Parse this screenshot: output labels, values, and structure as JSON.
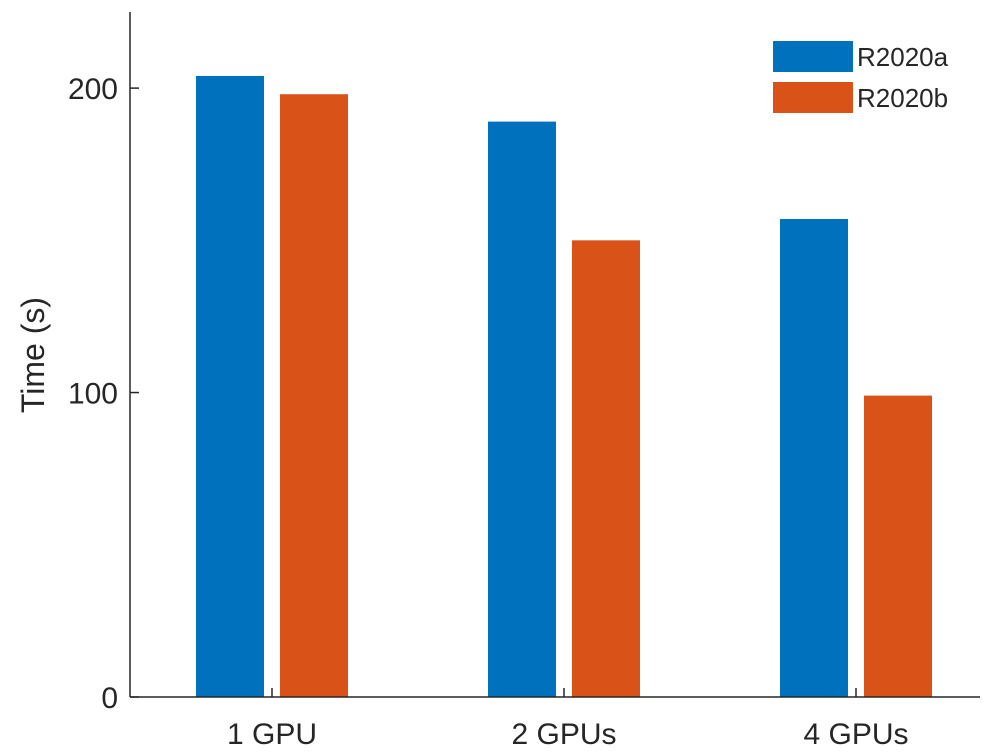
{
  "chart_data": {
    "type": "bar",
    "title": "",
    "xlabel": "",
    "ylabel": "Time (s)",
    "categories": [
      "1 GPU",
      "2 GPUs",
      "4 GPUs"
    ],
    "series": [
      {
        "name": "R2020a",
        "color": "#0072BD",
        "values": [
          204,
          189,
          157
        ]
      },
      {
        "name": "R2020b",
        "color": "#D95319",
        "values": [
          198,
          150,
          99
        ]
      }
    ],
    "ylim": [
      0,
      225
    ],
    "yticks": [
      0,
      100,
      200
    ],
    "grid": false,
    "legend_position": "top-right",
    "axis_color": "#262626"
  }
}
